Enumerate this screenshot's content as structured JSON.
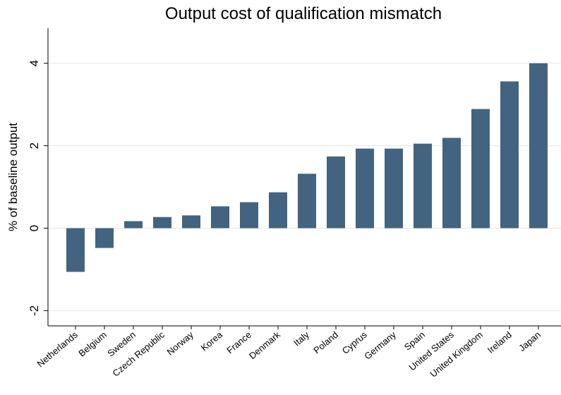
{
  "chart_data": {
    "type": "bar",
    "title": "Output cost of qualification mismatch",
    "y_label": "% of baseline output",
    "categories": [
      "Netherlands",
      "Belgium",
      "Sweden",
      "Czech Republic",
      "Norway",
      "Korea",
      "France",
      "Denmark",
      "Italy",
      "Poland",
      "Cyprus",
      "Germany",
      "Spain",
      "United States",
      "United Kingdom",
      "Ireland",
      "Japan"
    ],
    "values": [
      -1.06,
      -0.48,
      0.17,
      0.27,
      0.31,
      0.53,
      0.63,
      0.87,
      1.32,
      1.74,
      1.93,
      1.93,
      2.05,
      2.19,
      2.89,
      3.56,
      4.0
    ],
    "color": "#426480",
    "ylim": [
      -2.37,
      4.85
    ],
    "yticks": [
      -2,
      0,
      2,
      4
    ],
    "grid": true
  }
}
